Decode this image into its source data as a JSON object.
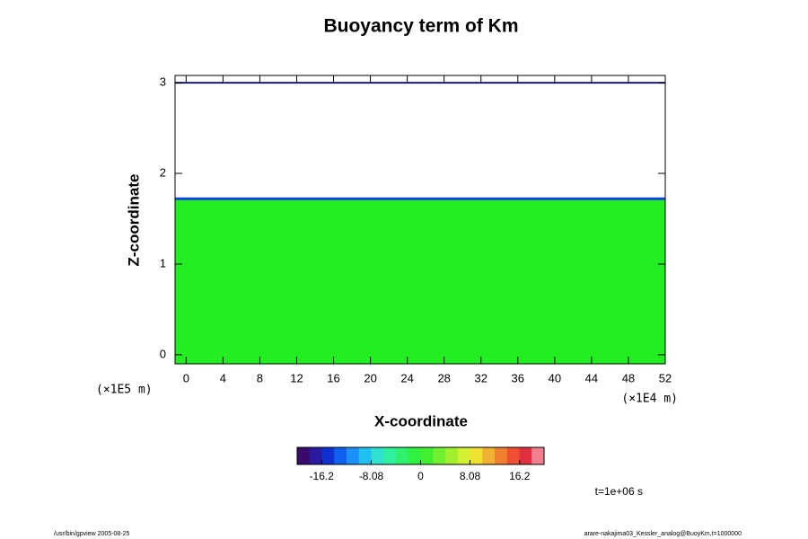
{
  "chart_data": {
    "type": "heatmap",
    "title": "Buoyancy term of Km",
    "xlabel": "X-coordinate",
    "ylabel": "Z-coordinate",
    "x_unit": "(×1E4 m)",
    "y_unit": "(×1E5 m)",
    "xlim": [
      -1.2,
      52
    ],
    "ylim": [
      -0.1,
      3.08
    ],
    "xticks": [
      0,
      4,
      8,
      12,
      16,
      20,
      24,
      28,
      32,
      36,
      40,
      44,
      48,
      52
    ],
    "yticks": [
      0,
      1,
      2,
      3
    ],
    "field": {
      "z_top": 1.72,
      "value": 0,
      "color": "#22ee22",
      "edge_color": "#1144dd"
    },
    "top_line": {
      "z": 3,
      "color": "#1a1a8a"
    },
    "colorbar": {
      "clim": [
        -20.2,
        20.2
      ],
      "ticks": [
        -16.2,
        -8.08,
        0,
        8.08,
        16.2
      ],
      "colors": [
        "#3a0a6a",
        "#2a1aa0",
        "#1030d0",
        "#1060f0",
        "#1a90f8",
        "#20c0f0",
        "#30e0d0",
        "#30f0a0",
        "#30f070",
        "#30f040",
        "#40f030",
        "#70f030",
        "#a0f030",
        "#d0f030",
        "#f0e030",
        "#f0b030",
        "#f08030",
        "#f05030",
        "#e03040",
        "#f08090"
      ]
    },
    "time_label": "t=1e+06 s",
    "footer_left": "/usr/bin/gpview 2005-08-25",
    "footer_right": "arare-nakajima03_Kessler_analog@BuoyKm,t=1000000"
  }
}
